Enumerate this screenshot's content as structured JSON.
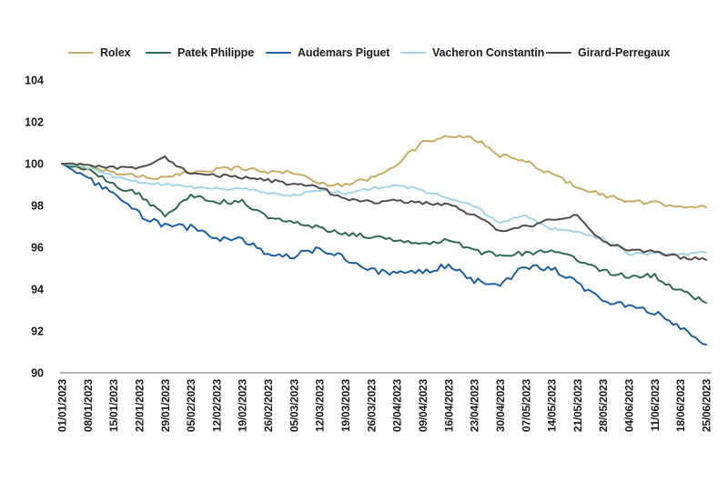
{
  "chart_data": {
    "type": "line",
    "title": "",
    "description": "Luxury watch brand price index, base 100 at 01/01/2023, daily series with weekly x-axis ticks",
    "legend_position": "top",
    "grid": false,
    "background_color": "#ffffff",
    "axis_line_color": "#9e9e9e",
    "label_color": "#1d1d1b",
    "ylim": [
      90,
      104.8
    ],
    "y_axis_ticks": [
      104,
      102,
      100,
      98,
      96,
      94,
      92,
      90
    ],
    "x_tick_labels": [
      "01/01/2023",
      "08/01/2023",
      "15/01/2023",
      "22/01/2023",
      "29/01/2023",
      "05/02/2023",
      "12/02/2023",
      "19/02/2023",
      "26/02/2023",
      "05/03/2023",
      "12/03/2023",
      "19/03/2023",
      "26/03/2023",
      "02/04/2023",
      "09/04/2023",
      "16/04/2023",
      "23/04/2023",
      "30/04/2023",
      "07/05/2023",
      "14/05/2023",
      "21/05/2023",
      "28/05/2023",
      "04/06/2023",
      "11/06/2023",
      "18/06/2023",
      "25/06/2023"
    ],
    "series": [
      {
        "name": "Rolex",
        "color": "#C8AC63",
        "jitter": 0.1,
        "values": [
          100.0,
          99.8,
          99.6,
          99.4,
          99.3,
          99.6,
          99.75,
          99.8,
          99.6,
          99.6,
          99.05,
          99.0,
          99.3,
          100.0,
          101.0,
          101.3,
          101.2,
          100.4,
          100.1,
          99.5,
          98.9,
          98.5,
          98.2,
          98.1,
          98.0,
          97.9
        ]
      },
      {
        "name": "Patek Philippe",
        "color": "#2F6B4F",
        "jitter": 0.12,
        "values": [
          100.0,
          99.7,
          99.0,
          98.5,
          97.5,
          98.55,
          98.15,
          98.2,
          97.45,
          97.15,
          96.95,
          96.65,
          96.5,
          96.4,
          96.2,
          96.4,
          95.8,
          95.65,
          95.7,
          95.8,
          95.45,
          94.85,
          94.6,
          94.65,
          93.9,
          93.35
        ]
      },
      {
        "name": "Audemars Piguet",
        "color": "#1C5FA8",
        "jitter": 0.15,
        "values": [
          100.0,
          99.3,
          98.5,
          97.6,
          97.0,
          96.95,
          96.45,
          96.35,
          95.7,
          95.6,
          95.9,
          95.5,
          94.9,
          94.7,
          94.85,
          95.15,
          94.4,
          94.15,
          95.1,
          95.0,
          94.25,
          93.55,
          93.1,
          92.9,
          92.1,
          91.35
        ]
      },
      {
        "name": "Vacheron Constantin",
        "color": "#A6D4E7",
        "jitter": 0.07,
        "values": [
          100.0,
          99.8,
          99.4,
          99.1,
          99.0,
          98.9,
          98.8,
          98.8,
          98.6,
          98.5,
          98.7,
          98.6,
          98.8,
          99.0,
          98.7,
          98.4,
          97.95,
          97.2,
          97.5,
          96.9,
          96.7,
          96.4,
          95.7,
          95.7,
          95.65,
          95.75
        ]
      },
      {
        "name": "Girard-Perregaux",
        "color": "#514E49",
        "jitter": 0.09,
        "values": [
          100.0,
          99.9,
          99.8,
          99.8,
          100.3,
          99.5,
          99.45,
          99.35,
          99.2,
          99.0,
          98.85,
          98.3,
          98.15,
          98.25,
          98.1,
          98.05,
          97.5,
          96.8,
          97.0,
          97.3,
          97.5,
          96.3,
          95.85,
          95.8,
          95.5,
          95.4
        ]
      }
    ]
  }
}
